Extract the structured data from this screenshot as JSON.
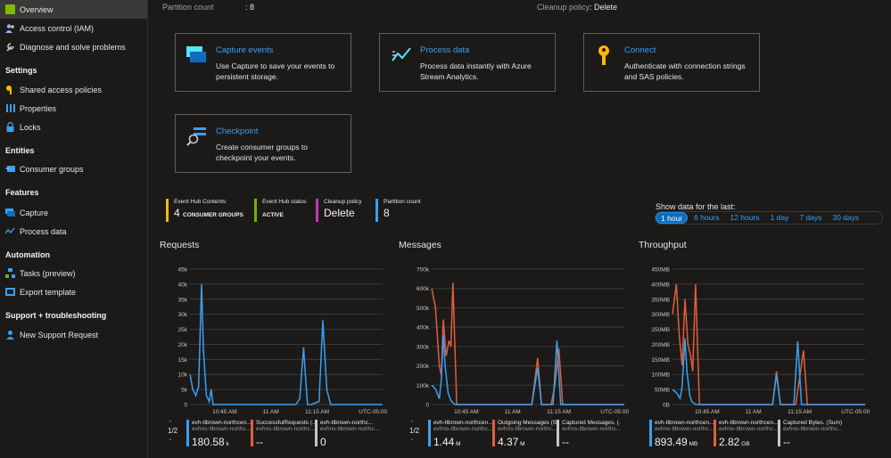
{
  "sidebar": {
    "items": [
      {
        "label": "Overview",
        "active": true,
        "color": "#7fba00"
      },
      {
        "label": "Access control (IAM)",
        "color": "#8ab4f8"
      },
      {
        "label": "Diagnose and solve problems",
        "color": "#c8c6c4"
      }
    ],
    "sections": [
      {
        "title": "Settings",
        "items": [
          {
            "label": "Shared access policies",
            "color": "#ffb900"
          },
          {
            "label": "Properties",
            "color": "#3aa0f3"
          },
          {
            "label": "Locks",
            "color": "#3aa0f3"
          }
        ]
      },
      {
        "title": "Entities",
        "items": [
          {
            "label": "Consumer groups",
            "color": "#3aa0f3"
          }
        ]
      },
      {
        "title": "Features",
        "items": [
          {
            "label": "Capture",
            "color": "#3aa0f3"
          },
          {
            "label": "Process data",
            "color": "#3aa0f3"
          }
        ]
      },
      {
        "title": "Automation",
        "items": [
          {
            "label": "Tasks (preview)",
            "color": "#3aa0f3"
          },
          {
            "label": "Export template",
            "color": "#3aa0f3"
          }
        ]
      },
      {
        "title": "Support + troubleshooting",
        "items": [
          {
            "label": "New Support Request",
            "color": "#3aa0f3"
          }
        ]
      }
    ]
  },
  "essentials": {
    "partition_label": "Partition count",
    "partition_value": ": 8",
    "cleanup_label": "Cleanup policy",
    "cleanup_value": ": Delete"
  },
  "cards": [
    {
      "title": "Capture events",
      "desc": "Use Capture to save your events to persistent storage."
    },
    {
      "title": "Process data",
      "desc": "Process data instantly with Azure Stream Analytics."
    },
    {
      "title": "Connect",
      "desc": "Authenticate with connection strings and SAS policies."
    },
    {
      "title": "Checkpoint",
      "desc": "Create consumer groups to checkpoint your events."
    }
  ],
  "tiles": [
    {
      "label": "Event Hub Contents",
      "value": "4",
      "suffix": "CONSUMER GROUPS",
      "color": "#ffb900"
    },
    {
      "label": "Event Hub status",
      "value": "",
      "suffix": "ACTIVE",
      "color": "#6bb700"
    },
    {
      "label": "Cleanup policy",
      "value": "Delete",
      "suffix": "",
      "color": "#c239b3"
    },
    {
      "label": "Partition count",
      "value": "8",
      "suffix": "",
      "color": "#3aa0f3"
    }
  ],
  "timerange": {
    "label": "Show data for the last:",
    "options": [
      "1 hour",
      "6 hours",
      "12 hours",
      "1 day",
      "7 days",
      "30 days"
    ],
    "selected": "1 hour"
  },
  "chart_data": [
    {
      "type": "line",
      "title": "Requests",
      "y_ticks": [
        "45k",
        "40k",
        "35k",
        "30k",
        "25k",
        "20k",
        "15k",
        "10k",
        "5k",
        "0"
      ],
      "x_ticks": [
        "10:45 AM",
        "11 AM",
        "11:15 AM",
        "UTC-05:00"
      ],
      "ylim": [
        0,
        45000
      ],
      "series": [
        {
          "color": "#3aa0f3",
          "x": [
            0,
            0.015,
            0.03,
            0.045,
            0.06,
            0.07,
            0.085,
            0.1,
            0.11,
            0.12,
            0.14,
            0.16,
            0.2,
            0.3,
            0.55,
            0.57,
            0.59,
            0.6,
            0.61,
            0.63,
            0.67,
            0.69,
            0.71,
            0.73,
            0.75,
            1
          ],
          "y": [
            10000,
            5000,
            3000,
            6000,
            40000,
            18000,
            3000,
            1000,
            5000,
            0,
            0,
            0,
            0,
            0,
            0,
            2000,
            19000,
            9000,
            0,
            0,
            1000,
            28000,
            5000,
            0,
            0,
            0
          ]
        }
      ],
      "legend": [
        {
          "name": "evh-tlbrown-northcen...",
          "sub": "evhns-tlbrown-northc...",
          "value": "180.58",
          "unit": "k",
          "color": "#3aa0f3"
        },
        {
          "name": "SuccessfulRequests (...",
          "sub": "evhns-tlbrown-northc...",
          "value": "--",
          "unit": "",
          "color": "#e05e3c"
        },
        {
          "name": "evh-tlbrown-northc...",
          "sub": "evhns-tlbrown-northc...",
          "value": "0",
          "unit": "",
          "color": "#c8c6c4"
        }
      ],
      "pager": "1/2"
    },
    {
      "type": "line",
      "title": "Messages",
      "y_ticks": [
        "700k",
        "600k",
        "500k",
        "400k",
        "300k",
        "200k",
        "100k",
        "0"
      ],
      "x_ticks": [
        "10:45 AM",
        "11 AM",
        "11:15 AM",
        "UTC-05:00"
      ],
      "ylim": [
        0,
        700000
      ],
      "series": [
        {
          "color": "#e05e3c",
          "x": [
            0,
            0.02,
            0.04,
            0.05,
            0.06,
            0.075,
            0.09,
            0.1,
            0.11,
            0.13,
            0.16,
            0.2,
            0.4,
            0.5,
            0.52,
            0.55,
            0.57,
            0.59,
            0.62,
            0.64,
            0.66,
            0.68,
            0.7,
            1
          ],
          "y": [
            600000,
            500000,
            200000,
            150000,
            440000,
            250000,
            330000,
            300000,
            630000,
            0,
            0,
            0,
            0,
            0,
            0,
            240000,
            0,
            0,
            0,
            100000,
            290000,
            0,
            0,
            0
          ]
        },
        {
          "color": "#3aa0f3",
          "x": [
            0,
            0.02,
            0.04,
            0.05,
            0.06,
            0.07,
            0.085,
            0.1,
            0.12,
            0.2,
            0.5,
            0.52,
            0.55,
            0.57,
            0.6,
            0.63,
            0.65,
            0.67,
            0.7,
            1
          ],
          "y": [
            100000,
            80000,
            30000,
            130000,
            360000,
            200000,
            60000,
            20000,
            0,
            0,
            0,
            0,
            190000,
            0,
            0,
            0,
            330000,
            0,
            0,
            0
          ]
        }
      ],
      "legend": [
        {
          "name": "evh-tlbrown-northcen...",
          "sub": "evhns-tlbrown-northc...",
          "value": "1.44",
          "unit": "M",
          "color": "#3aa0f3"
        },
        {
          "name": "Outgoing Messages (Sum)",
          "sub": "evhns-tlbrown-northc...",
          "value": "4.37",
          "unit": "M",
          "color": "#e05e3c"
        },
        {
          "name": "Captured Messages. (...",
          "sub": "evhns-tlbrown-northc...",
          "value": "--",
          "unit": "",
          "color": "#c8c6c4"
        }
      ],
      "pager": "1/2"
    },
    {
      "type": "line",
      "title": "Throughput",
      "y_ticks": [
        "450MB",
        "400MB",
        "350MB",
        "300MB",
        "250MB",
        "200MB",
        "150MB",
        "100MB",
        "50MB",
        "0B"
      ],
      "x_ticks": [
        "10:45 AM",
        "11 AM",
        "11:15 AM",
        "UTC-05:00"
      ],
      "ylim": [
        0,
        450
      ],
      "series": [
        {
          "color": "#e05e3c",
          "x": [
            0,
            0.02,
            0.035,
            0.05,
            0.065,
            0.08,
            0.095,
            0.105,
            0.12,
            0.14,
            0.2,
            0.5,
            0.52,
            0.54,
            0.56,
            0.58,
            0.64,
            0.66,
            0.68,
            0.7,
            1
          ],
          "y": [
            300,
            400,
            230,
            130,
            350,
            200,
            160,
            110,
            400,
            0,
            0,
            0,
            0,
            110,
            0,
            0,
            0,
            90,
            180,
            0,
            0
          ]
        },
        {
          "color": "#3aa0f3",
          "x": [
            0,
            0.02,
            0.04,
            0.05,
            0.065,
            0.075,
            0.09,
            0.1,
            0.12,
            0.2,
            0.5,
            0.52,
            0.54,
            0.56,
            0.6,
            0.63,
            0.65,
            0.67,
            0.7,
            1
          ],
          "y": [
            50,
            40,
            20,
            60,
            220,
            110,
            30,
            10,
            0,
            0,
            0,
            0,
            100,
            0,
            0,
            0,
            210,
            0,
            0,
            0
          ]
        }
      ],
      "legend": [
        {
          "name": "evh-tlbrown-northcen...",
          "sub": "evhns-tlbrown-northc...",
          "value": "893.49",
          "unit": "MB",
          "color": "#3aa0f3"
        },
        {
          "name": "evh-tlbrown-northcen...",
          "sub": "evhns-tlbrown-northc...",
          "value": "2.82",
          "unit": "GB",
          "color": "#e05e3c"
        },
        {
          "name": "Captured Bytes. (Sum)",
          "sub": "evhns-tlbrown-northc...",
          "value": "--",
          "unit": "",
          "color": "#c8c6c4"
        }
      ],
      "pager": ""
    }
  ]
}
